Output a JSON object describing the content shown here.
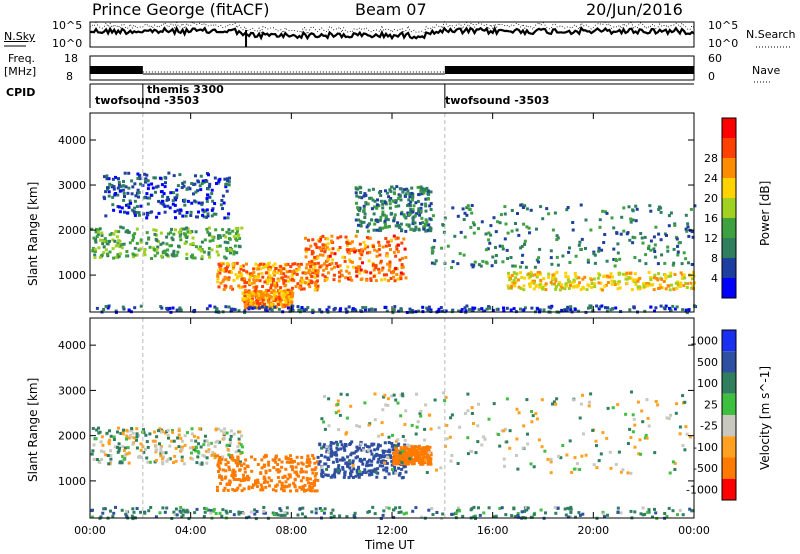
{
  "header": {
    "site": "Prince George (fitACF)",
    "beam": "Beam 07",
    "date": "20/Jun/2016"
  },
  "left_labels": {
    "nsky": "N.Sky",
    "freq_line1": "Freq.",
    "freq_line2": "[MHz]",
    "cpid": "CPID"
  },
  "right_labels": {
    "nsearch": "N.Search",
    "nave": "Nave"
  },
  "noise_axis": {
    "top": "10^5",
    "bottom": "10^0"
  },
  "freq_axis": {
    "top": "18",
    "bottom": "8"
  },
  "nave_axis": {
    "top": "60",
    "bottom": "0"
  },
  "cpid_runs": [
    {
      "label": "twofsound -3503",
      "start_hour": 0
    },
    {
      "label": "themis 3300",
      "start_hour": 2.1
    },
    {
      "label": "twofsound -3503",
      "start_hour": 14.1
    }
  ],
  "time_ticks": [
    "00:00",
    "04:00",
    "08:00",
    "12:00",
    "16:00",
    "20:00",
    "00:00"
  ],
  "x_axis_label": "Time UT",
  "colors": {
    "power": [
      "#0000ff",
      "#1f3fa0",
      "#2f7f5f",
      "#3fa03f",
      "#a0d020",
      "#ffd200",
      "#ff8c00",
      "#ff4000",
      "#ff0000"
    ],
    "velocity": [
      "#1a2ff0",
      "#2f4fa0",
      "#2f7f5f",
      "#3fbf3f",
      "#c8c8c0",
      "#ffa020",
      "#ff7a00",
      "#ff0000"
    ],
    "ground_scatter": "#c0c0b8"
  },
  "chart_data": [
    {
      "type": "heatmap",
      "name": "power",
      "xlabel": "",
      "ylabel": "Slant Range [km]",
      "xlim": [
        0,
        24
      ],
      "ylim": [
        180,
        4600
      ],
      "yticks": [
        "1000",
        "2000",
        "3000",
        "4000"
      ],
      "ytick_values": [
        1000,
        2000,
        3000,
        4000
      ],
      "colorbar": {
        "label": "Power [dB]",
        "range": [
          0,
          32
        ],
        "ticks": [
          "4",
          "8",
          "12",
          "16",
          "20",
          "24",
          "28"
        ]
      },
      "regions": [
        {
          "t0": 0.0,
          "t1": 6.0,
          "r0": 1400,
          "r1": 2100,
          "level": 14
        },
        {
          "t0": 0.5,
          "t1": 5.5,
          "r0": 2300,
          "r1": 3300,
          "level": 6
        },
        {
          "t0": 5.0,
          "t1": 9.0,
          "r0": 700,
          "r1": 1300,
          "level": 26
        },
        {
          "t0": 6.0,
          "t1": 8.0,
          "r0": 300,
          "r1": 700,
          "level": 26
        },
        {
          "t0": 8.5,
          "t1": 12.5,
          "r0": 900,
          "r1": 1900,
          "level": 28
        },
        {
          "t0": 10.5,
          "t1": 13.5,
          "r0": 2000,
          "r1": 3000,
          "level": 10
        },
        {
          "t0": 13.5,
          "t1": 24.0,
          "r0": 1200,
          "r1": 2600,
          "level": 10
        },
        {
          "t0": 16.5,
          "t1": 24.0,
          "r0": 700,
          "r1": 1100,
          "level": 22
        },
        {
          "t0": 0.0,
          "t1": 24.0,
          "r0": 200,
          "r1": 350,
          "level": 6
        }
      ]
    },
    {
      "type": "heatmap",
      "name": "velocity",
      "xlabel": "Time UT",
      "ylabel": "Slant Range [km]",
      "xlim": [
        0,
        24
      ],
      "ylim": [
        180,
        4600
      ],
      "yticks": [
        "1000",
        "2000",
        "3000",
        "4000"
      ],
      "ytick_values": [
        1000,
        2000,
        3000,
        4000
      ],
      "colorbar": {
        "label": "Velocity [m s^-1]",
        "ticks": [
          "1000",
          "500",
          "100",
          "25",
          "-25",
          "-100",
          "-500",
          "-1000"
        ]
      },
      "regions": [
        {
          "t0": 0.0,
          "t1": 6.0,
          "r0": 1400,
          "r1": 2200,
          "value": 0
        },
        {
          "t0": 5.0,
          "t1": 9.0,
          "r0": 800,
          "r1": 1600,
          "value": -300
        },
        {
          "t0": 9.0,
          "t1": 12.5,
          "r0": 1100,
          "r1": 1900,
          "value": 300
        },
        {
          "t0": 12.0,
          "t1": 13.5,
          "r0": 1400,
          "r1": 1800,
          "value": -200
        },
        {
          "t0": 9.0,
          "t1": 24.0,
          "r0": 1200,
          "r1": 3000,
          "value": 0
        },
        {
          "t0": 0.0,
          "t1": 24.0,
          "r0": 200,
          "r1": 450,
          "value": 60
        }
      ]
    }
  ]
}
